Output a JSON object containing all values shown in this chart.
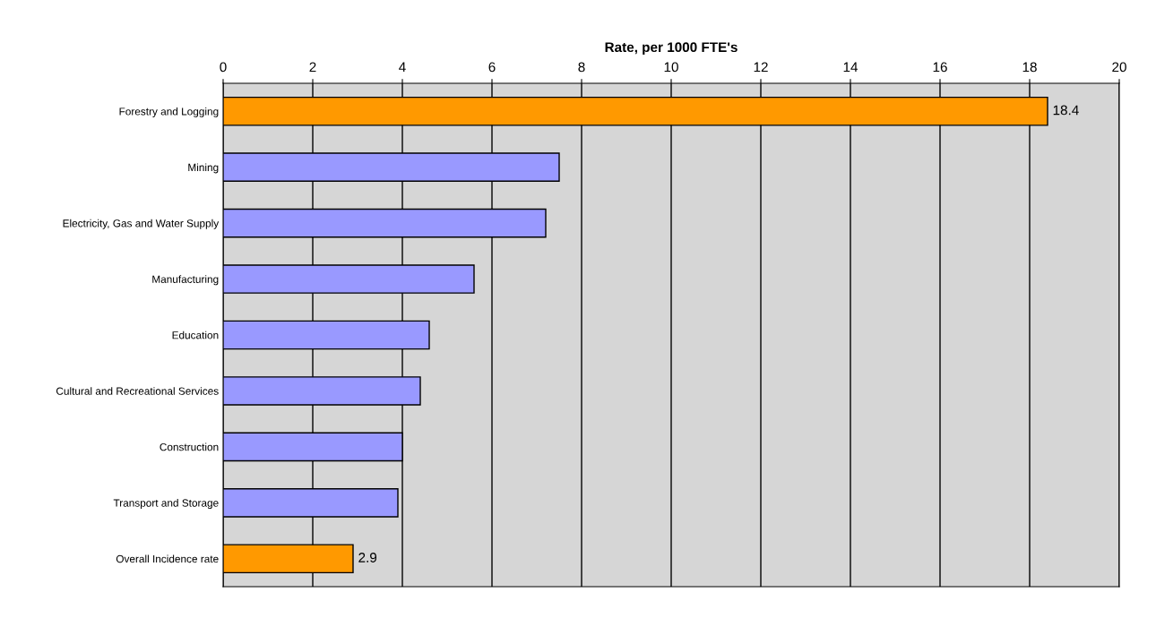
{
  "chart_data": {
    "type": "bar",
    "orientation": "horizontal",
    "xlabel": "Rate, per 1000 FTE's",
    "categories": [
      "Forestry and Logging",
      "Mining",
      "Electricity, Gas and Water Supply",
      "Manufacturing",
      "Education",
      "Cultural and Recreational Services",
      "Construction",
      "Transport and Storage",
      "Overall Incidence rate"
    ],
    "values": [
      18.4,
      7.5,
      7.2,
      5.6,
      4.6,
      4.4,
      4.0,
      3.9,
      2.9
    ],
    "colors": [
      "#ff9900",
      "#9999ff",
      "#9999ff",
      "#9999ff",
      "#9999ff",
      "#9999ff",
      "#9999ff",
      "#9999ff",
      "#ff9900"
    ],
    "value_labels": [
      "18.4",
      null,
      null,
      null,
      null,
      null,
      null,
      null,
      "2.9"
    ],
    "xlim": [
      0,
      20
    ],
    "xticks": [
      0,
      2,
      4,
      6,
      8,
      10,
      12,
      14,
      16,
      18,
      20
    ],
    "grid": "x"
  }
}
